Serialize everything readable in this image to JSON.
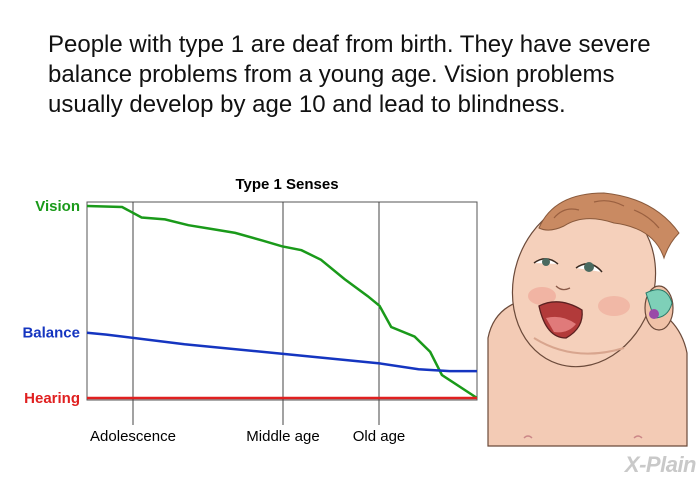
{
  "intro_text": "People with type 1 are deaf from birth. They have severe balance problems from a young age. Vision problems usually develop by age 10 and lead to blindness.",
  "watermark": "X-Plain",
  "colors": {
    "vision": "#1a9a1a",
    "balance": "#1535c0",
    "hearing": "#e02020"
  },
  "chart_data": {
    "type": "line",
    "title": "Type 1 Senses",
    "x_stages": [
      "Adolescence",
      "Middle age",
      "Old age"
    ],
    "series": [
      {
        "name": "Vision",
        "color_key": "vision",
        "points": [
          [
            0,
            1.0
          ],
          [
            0.09,
            0.995
          ],
          [
            0.14,
            0.94
          ],
          [
            0.2,
            0.93
          ],
          [
            0.26,
            0.9
          ],
          [
            0.32,
            0.88
          ],
          [
            0.38,
            0.86
          ],
          [
            0.45,
            0.82
          ],
          [
            0.5,
            0.79
          ],
          [
            0.55,
            0.77
          ],
          [
            0.6,
            0.72
          ],
          [
            0.66,
            0.62
          ],
          [
            0.72,
            0.53
          ],
          [
            0.75,
            0.48
          ],
          [
            0.78,
            0.37
          ],
          [
            0.84,
            0.32
          ],
          [
            0.88,
            0.24
          ],
          [
            0.91,
            0.12
          ],
          [
            1.0,
            0.0
          ]
        ]
      },
      {
        "name": "Balance",
        "color_key": "balance",
        "points": [
          [
            0,
            0.34
          ],
          [
            0.05,
            0.33
          ],
          [
            0.25,
            0.28
          ],
          [
            0.5,
            0.23
          ],
          [
            0.75,
            0.18
          ],
          [
            0.85,
            0.15
          ],
          [
            0.93,
            0.14
          ],
          [
            1.0,
            0.14
          ]
        ]
      },
      {
        "name": "Hearing",
        "color_key": "hearing",
        "points": [
          [
            0,
            0.0
          ],
          [
            1.0,
            0.0
          ]
        ]
      }
    ]
  }
}
